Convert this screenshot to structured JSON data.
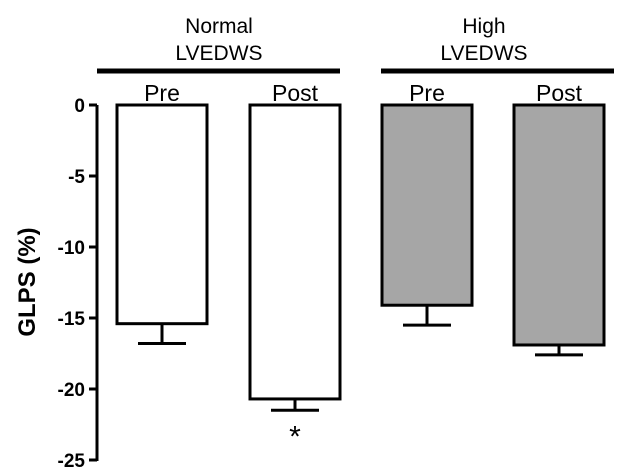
{
  "chart_data": {
    "type": "bar",
    "ylabel": "GLPS (%)",
    "ylim": [
      -25,
      0
    ],
    "yticks": [
      0,
      -5,
      -10,
      -15,
      -20,
      -25
    ],
    "groups": [
      {
        "label_line1": "Normal",
        "label_line2": "LVEDWS",
        "categories": [
          "Pre",
          "Post"
        ]
      },
      {
        "label_line1": "High",
        "label_line2": "LVEDWS",
        "categories": [
          "Pre",
          "Post"
        ]
      }
    ],
    "bars": [
      {
        "group": "Normal LVEDWS",
        "category": "Pre",
        "value": -15.4,
        "error": 1.4,
        "fill": "#ffffff",
        "annotation": ""
      },
      {
        "group": "Normal LVEDWS",
        "category": "Post",
        "value": -20.7,
        "error": 0.8,
        "fill": "#ffffff",
        "annotation": "*"
      },
      {
        "group": "High LVEDWS",
        "category": "Pre",
        "value": -14.1,
        "error": 1.4,
        "fill": "#a6a6a6",
        "annotation": ""
      },
      {
        "group": "High LVEDWS",
        "category": "Post",
        "value": -16.9,
        "error": 0.7,
        "fill": "#a6a6a6",
        "annotation": ""
      }
    ],
    "grid": false,
    "legend": "none"
  }
}
